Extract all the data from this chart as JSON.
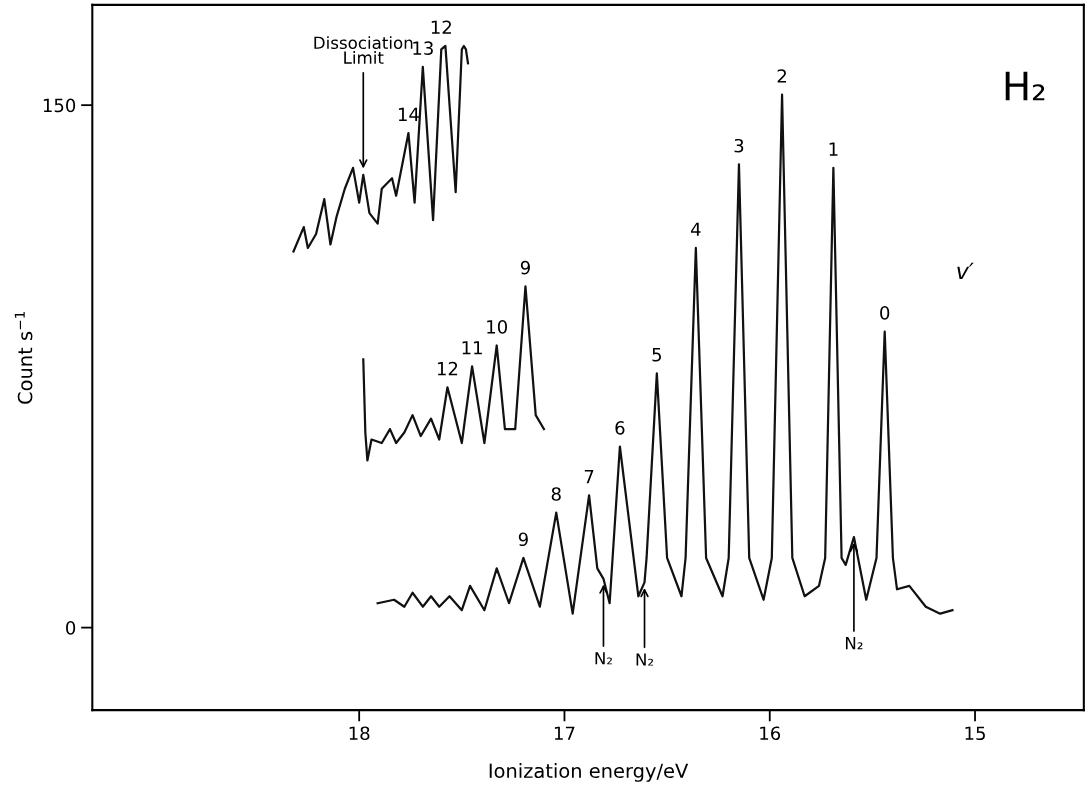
{
  "chart_data": {
    "type": "line",
    "xlabel": "Ionization energy/eV",
    "ylabel": "Count s$^{−1}$",
    "xlim": [
      19.3,
      14.47
    ],
    "ylim": [
      -23.7,
      178.8
    ],
    "xticks": [
      18,
      17,
      16,
      15
    ],
    "yticks": [
      0,
      150
    ],
    "grid": false,
    "legend": false,
    "marker": "none",
    "line_style": "solid",
    "series": [
      {
        "color": "#111111",
        "x": [
          17.91,
          17.83,
          17.78,
          17.74,
          17.69,
          17.65,
          17.61,
          17.56,
          17.5,
          17.46,
          17.39,
          17.33,
          17.27,
          17.2,
          17.12,
          17.04,
          16.96,
          16.88,
          16.84,
          16.81,
          16.78,
          16.73,
          16.64,
          16.61,
          16.6,
          16.55,
          16.5,
          16.43,
          16.41,
          16.36,
          16.31,
          16.23,
          16.2,
          16.15,
          16.1,
          16.03,
          15.99,
          15.94,
          15.89,
          15.83,
          15.76,
          15.73,
          15.69,
          15.65,
          15.63,
          15.59,
          15.53,
          15.48,
          15.44,
          15.4,
          15.38,
          15.32,
          15.24,
          15.17,
          15.11
        ],
        "values": [
          7,
          8,
          6,
          10,
          6,
          9,
          6,
          9,
          5,
          12,
          5,
          17,
          7,
          20,
          6,
          33,
          4,
          38,
          17,
          14,
          7,
          52,
          9,
          13,
          20,
          73,
          20,
          9,
          20,
          109,
          20,
          9,
          20,
          133,
          20,
          8,
          20,
          153,
          20,
          9,
          12,
          20,
          132,
          20,
          18,
          26,
          8,
          20,
          85,
          20,
          11,
          12,
          6,
          4,
          5
        ]
      },
      {
        "color": "#111111",
        "x": [
          17.98,
          17.97,
          17.96,
          17.94,
          17.89,
          17.85,
          17.82,
          17.78,
          17.74,
          17.7,
          17.65,
          17.61,
          17.57,
          17.5,
          17.45,
          17.39,
          17.33,
          17.29,
          17.24,
          17.19,
          17.14,
          17.1
        ],
        "values": [
          77,
          56,
          48,
          54,
          53,
          57,
          53,
          56,
          61,
          55,
          60,
          54,
          69,
          53,
          75,
          53,
          81,
          57,
          57,
          98,
          61,
          57
        ]
      },
      {
        "color": "#111111",
        "x": [
          18.32,
          18.27,
          18.25,
          18.21,
          18.17,
          18.14,
          18.11,
          18.07,
          18.03,
          18.0,
          17.98,
          17.95,
          17.91,
          17.89,
          17.84,
          17.82,
          17.76,
          17.73,
          17.69,
          17.64,
          17.6,
          17.58,
          17.53,
          17.5,
          17.49,
          17.48,
          17.47
        ],
        "values": [
          108,
          115,
          109,
          113,
          123,
          110,
          118,
          126,
          132,
          122,
          130,
          119,
          116,
          126,
          129,
          124,
          142,
          122,
          161,
          117,
          166,
          167,
          125,
          166,
          167,
          166,
          162
        ]
      }
    ],
    "annotations": [
      {
        "text": "0",
        "x": 15.44,
        "y": 85
      },
      {
        "text": "1",
        "x": 15.69,
        "y": 132
      },
      {
        "text": "2",
        "x": 15.94,
        "y": 153
      },
      {
        "text": "3",
        "x": 16.15,
        "y": 133
      },
      {
        "text": "4",
        "x": 16.36,
        "y": 109
      },
      {
        "text": "5",
        "x": 16.55,
        "y": 73
      },
      {
        "text": "6",
        "x": 16.73,
        "y": 52
      },
      {
        "text": "7",
        "x": 16.88,
        "y": 38
      },
      {
        "text": "8",
        "x": 17.04,
        "y": 33
      },
      {
        "text": "9",
        "x": 17.2,
        "y": 20
      },
      {
        "text": "9",
        "x": 17.19,
        "y": 98
      },
      {
        "text": "10",
        "x": 17.33,
        "y": 81
      },
      {
        "text": "11",
        "x": 17.45,
        "y": 75
      },
      {
        "text": "12",
        "x": 17.57,
        "y": 69
      },
      {
        "text": "14",
        "x": 17.76,
        "y": 142
      },
      {
        "text": "13",
        "x": 17.69,
        "y": 161
      },
      {
        "text": "12",
        "x": 17.6,
        "y": 167
      },
      {
        "text": "N₂",
        "x": 16.81,
        "y": 14
      },
      {
        "text": "N₂",
        "x": 16.61,
        "y": 13
      },
      {
        "text": "N₂",
        "x": 15.59,
        "y": 26
      },
      {
        "text": "Dissociation\nLimit",
        "x": 17.98,
        "y": 131
      },
      "v′",
      "H₂"
    ]
  }
}
